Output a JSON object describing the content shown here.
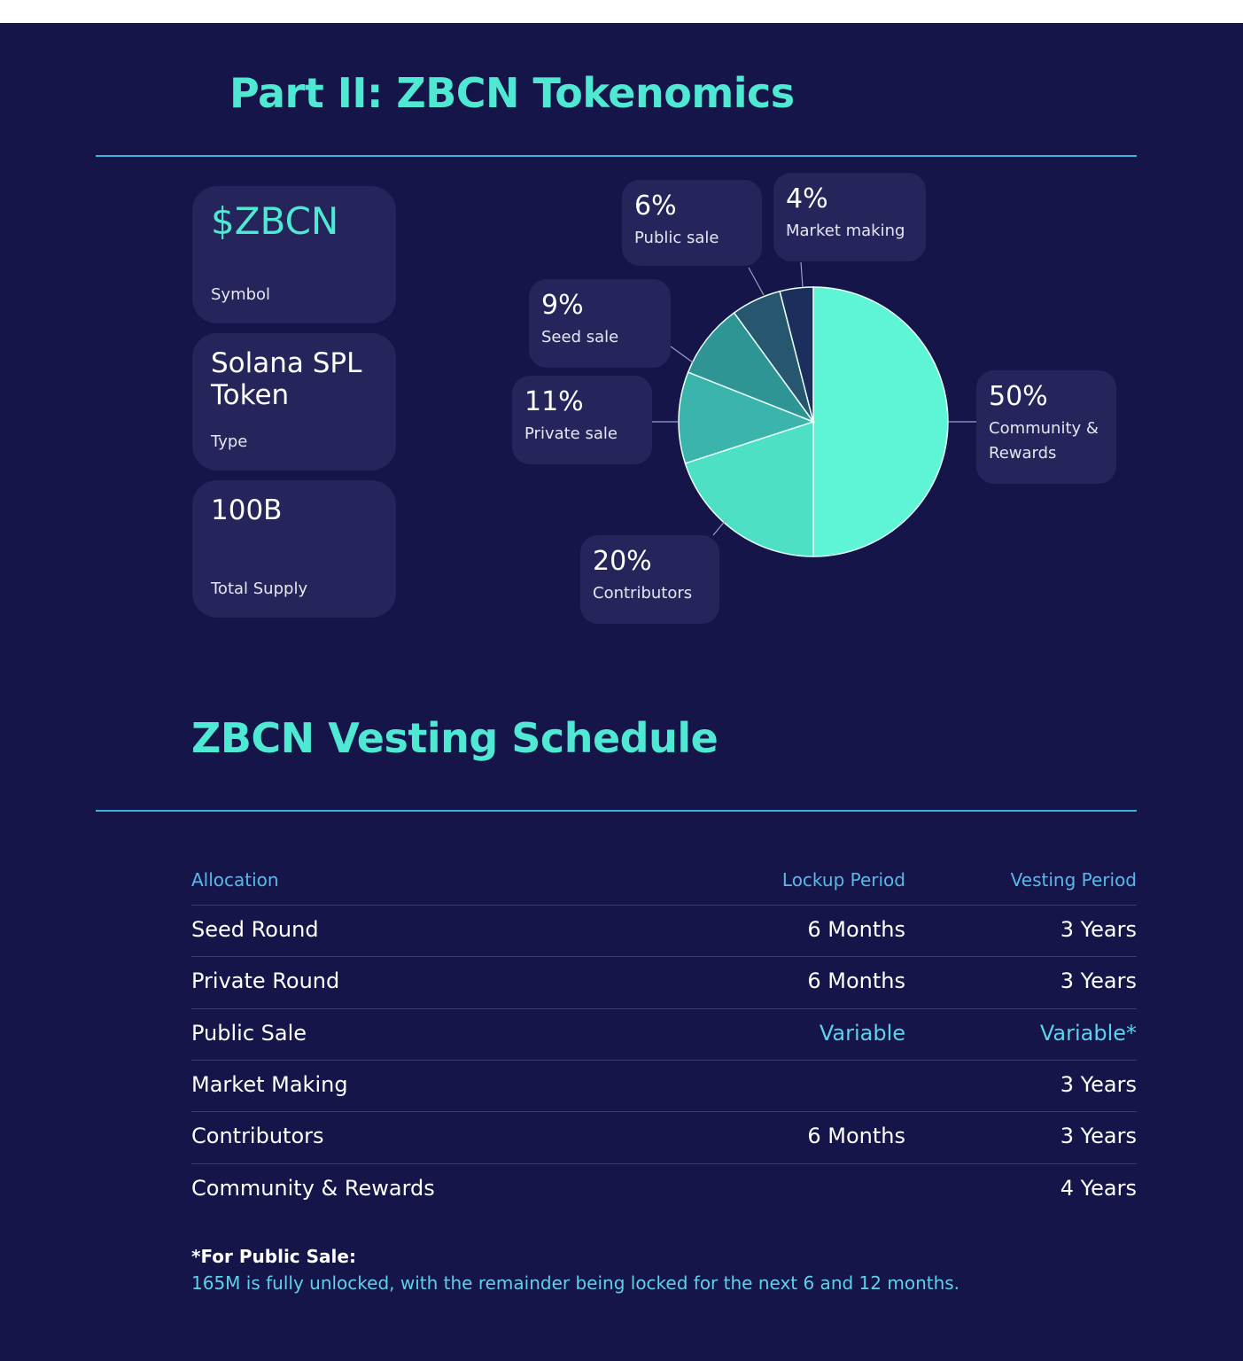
{
  "title": "Part II: ZBCN Tokenomics",
  "cards": [
    {
      "value": "$ZBCN",
      "label": "Symbol"
    },
    {
      "value": "Solana SPL Token",
      "label": "Type"
    },
    {
      "value": "100B",
      "label": "Total Supply"
    }
  ],
  "chart_data": {
    "type": "pie",
    "categories": [
      "Community & Rewards",
      "Contributors",
      "Private sale",
      "Seed sale",
      "Public sale",
      "Market making"
    ],
    "values": [
      50,
      20,
      11,
      9,
      6,
      4
    ],
    "value_labels": [
      "50%",
      "20%",
      "11%",
      "9%",
      "6%",
      "4%"
    ],
    "colors": [
      "#5ef5d6",
      "#4de0c4",
      "#3bb5ab",
      "#2e9494",
      "#27576f",
      "#1c2f5c"
    ]
  },
  "vesting": {
    "title": "ZBCN Vesting Schedule",
    "table": {
      "header": [
        "Allocation",
        "Lockup Period",
        "Vesting Period"
      ],
      "rows": [
        [
          "Seed Round",
          "6 Months",
          "3 Years"
        ],
        [
          "Private Round",
          "6 Months",
          "3 Years"
        ],
        [
          "Public Sale",
          "Variable",
          "Variable*"
        ],
        [
          "Market Making",
          null,
          "3 Years"
        ],
        [
          "Contributors",
          "6 Months",
          "3 Years"
        ],
        [
          "Community & Rewards",
          null,
          "4 Years"
        ]
      ]
    },
    "footnote": {
      "title": "*For Public Sale:",
      "text": "165M is fully unlocked, with the remainder being locked for the next 6 and 12 months."
    }
  }
}
